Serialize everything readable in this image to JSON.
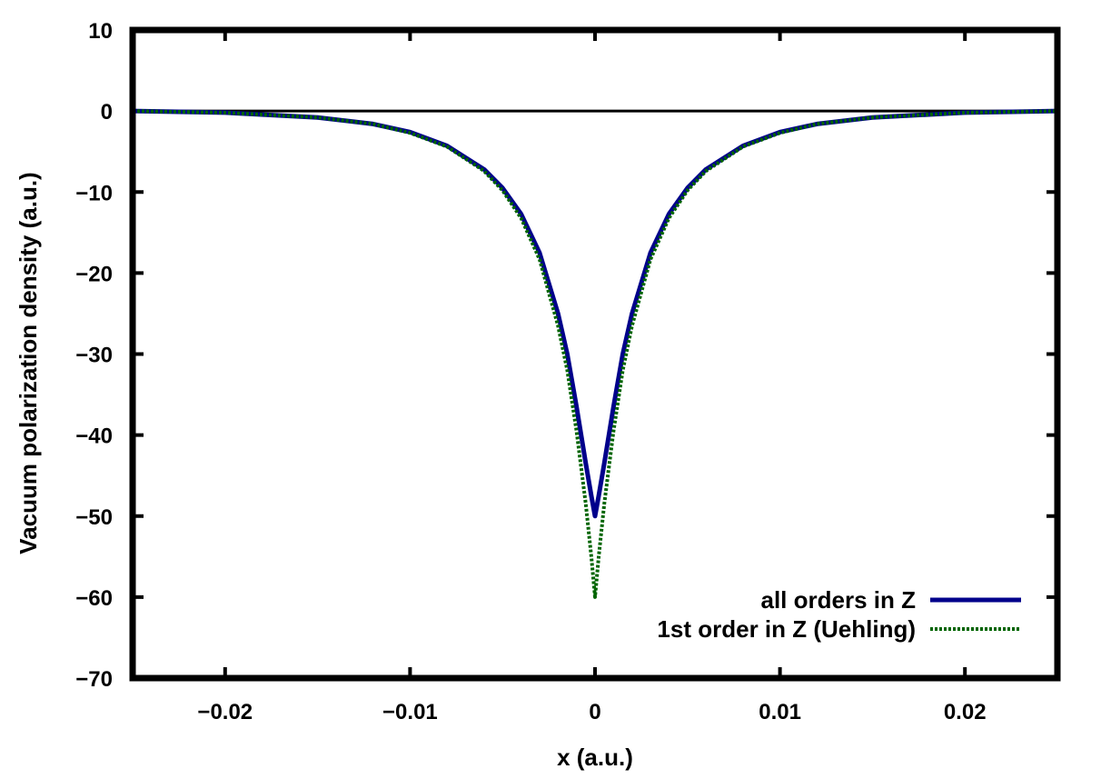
{
  "chart_data": {
    "type": "line",
    "xlabel": "x (a.u.)",
    "ylabel": "Vacuum polarization density (a.u.)",
    "xlim": [
      -0.025,
      0.025
    ],
    "ylim": [
      -70,
      10
    ],
    "xticks": [
      -0.02,
      -0.01,
      0,
      0.01,
      0.02
    ],
    "xtick_labels": [
      "−0.02",
      "−0.01",
      "0",
      "0.01",
      "0.02"
    ],
    "yticks": [
      10,
      0,
      -10,
      -20,
      -30,
      -40,
      -50,
      -60,
      -70
    ],
    "ytick_labels": [
      "10",
      "0",
      "−10",
      "−20",
      "−30",
      "−40",
      "−50",
      "−60",
      "−70"
    ],
    "zero_line": true,
    "grid": false,
    "legend_position": "bottom-right",
    "series": [
      {
        "name": "all orders in Z",
        "color": "#00008b",
        "style": "solid",
        "x": [
          -0.025,
          -0.02,
          -0.015,
          -0.012,
          -0.01,
          -0.008,
          -0.006,
          -0.005,
          -0.004,
          -0.003,
          -0.002,
          -0.0015,
          -0.001,
          -0.0005,
          -0.0002,
          0,
          0.0002,
          0.0005,
          0.001,
          0.0015,
          0.002,
          0.003,
          0.004,
          0.005,
          0.006,
          0.008,
          0.01,
          0.012,
          0.015,
          0.02,
          0.025
        ],
        "y": [
          0,
          -0.2,
          -0.8,
          -1.6,
          -2.6,
          -4.3,
          -7.2,
          -9.5,
          -12.7,
          -17.5,
          -25,
          -30,
          -36.5,
          -43.5,
          -47.5,
          -50,
          -47.5,
          -43.5,
          -36.5,
          -30,
          -25,
          -17.5,
          -12.7,
          -9.5,
          -7.2,
          -4.3,
          -2.6,
          -1.6,
          -0.8,
          -0.2,
          0
        ]
      },
      {
        "name": "1st order in Z (Uehling)",
        "color": "#006400",
        "style": "dotted",
        "x": [
          -0.025,
          -0.02,
          -0.015,
          -0.012,
          -0.01,
          -0.008,
          -0.006,
          -0.005,
          -0.004,
          -0.003,
          -0.002,
          -0.0015,
          -0.001,
          -0.0005,
          -0.0002,
          0,
          0.0002,
          0.0005,
          0.001,
          0.0015,
          0.002,
          0.003,
          0.004,
          0.005,
          0.006,
          0.008,
          0.01,
          0.012,
          0.015,
          0.02,
          0.025
        ],
        "y": [
          0,
          -0.2,
          -0.8,
          -1.6,
          -2.7,
          -4.4,
          -7.4,
          -9.8,
          -13.2,
          -18.3,
          -26.5,
          -32,
          -39.5,
          -48.5,
          -55,
          -60,
          -55,
          -48.5,
          -39.5,
          -32,
          -26.5,
          -18.3,
          -13.2,
          -9.8,
          -7.4,
          -4.4,
          -2.7,
          -1.6,
          -0.8,
          -0.2,
          0
        ]
      }
    ]
  }
}
